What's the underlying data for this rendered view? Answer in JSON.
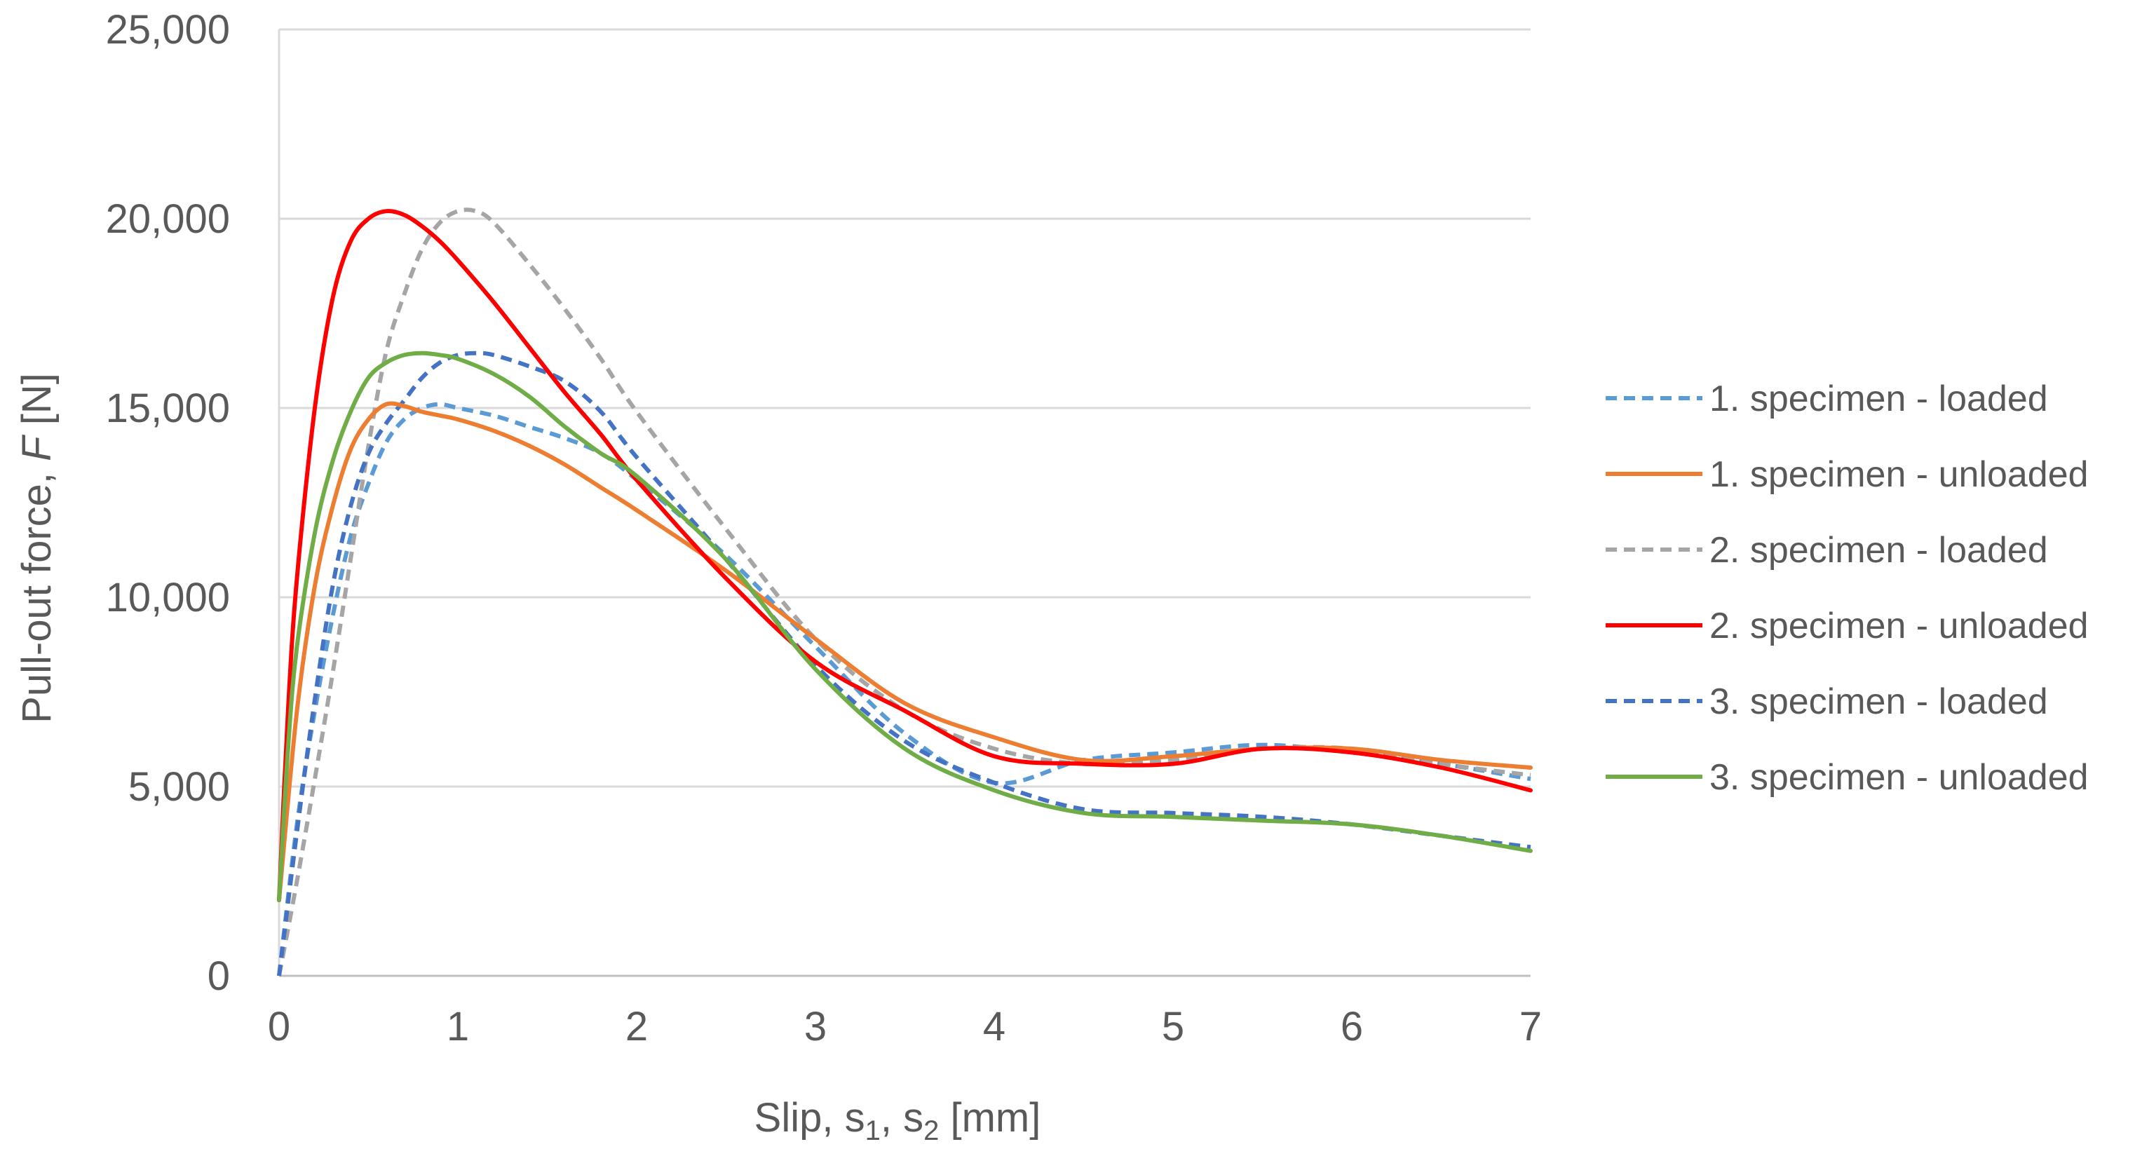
{
  "chart_data": {
    "type": "line",
    "title": "",
    "xlabel": {
      "main": "Slip, s",
      "sub1": "1",
      "sep": ", s",
      "sub2": "2",
      "unit": " [mm]"
    },
    "ylabel": {
      "main": "Pull-out force, ",
      "italic": "F",
      "unit": " [N]"
    },
    "xlim": [
      0,
      7
    ],
    "ylim": [
      0,
      25000
    ],
    "x_ticks": [
      0,
      1,
      2,
      3,
      4,
      5,
      6,
      7
    ],
    "x_tick_labels": [
      "0",
      "1",
      "2",
      "3",
      "4",
      "5",
      "6",
      "7"
    ],
    "y_ticks": [
      0,
      5000,
      10000,
      15000,
      20000,
      25000
    ],
    "y_tick_labels": [
      "0",
      "5,000",
      "10,000",
      "15,000",
      "20,000",
      "25,000"
    ],
    "grid": "horizontal",
    "legend_position": "right",
    "series": [
      {
        "name": "1. specimen - loaded",
        "color": "#5B9BD5",
        "dashed": true,
        "x": [
          0,
          0.1,
          0.2,
          0.3,
          0.4,
          0.5,
          0.6,
          0.7,
          0.8,
          0.9,
          1.0,
          1.2,
          1.4,
          1.6,
          1.8,
          2.0,
          2.5,
          3.0,
          3.5,
          4.0,
          4.5,
          5.0,
          5.5,
          6.0,
          6.5,
          7.0
        ],
        "y": [
          0,
          4000,
          7000,
          9500,
          11600,
          13000,
          14100,
          14700,
          15000,
          15100,
          15000,
          14800,
          14500,
          14200,
          13800,
          13100,
          11100,
          8700,
          6400,
          5100,
          5700,
          5900,
          6100,
          5900,
          5600,
          5200
        ]
      },
      {
        "name": "1. specimen - unloaded",
        "color": "#ED7D31",
        "dashed": false,
        "x": [
          0,
          0.1,
          0.2,
          0.3,
          0.4,
          0.5,
          0.6,
          0.7,
          0.8,
          0.9,
          1.0,
          1.2,
          1.4,
          1.6,
          1.8,
          2.0,
          2.5,
          3.0,
          3.5,
          4.0,
          4.5,
          5.0,
          5.5,
          6.0,
          6.5,
          7.0
        ],
        "y": [
          2000,
          7000,
          10300,
          12400,
          13900,
          14700,
          15100,
          15050,
          14900,
          14800,
          14700,
          14400,
          14000,
          13500,
          12900,
          12300,
          10700,
          8900,
          7200,
          6300,
          5700,
          5800,
          6000,
          6000,
          5700,
          5500
        ]
      },
      {
        "name": "2. specimen - loaded",
        "color": "#A5A5A5",
        "dashed": true,
        "x": [
          0,
          0.1,
          0.2,
          0.3,
          0.4,
          0.5,
          0.6,
          0.7,
          0.8,
          0.9,
          1.0,
          1.1,
          1.2,
          1.4,
          1.6,
          1.8,
          2.0,
          2.5,
          3.0,
          3.5,
          4.0,
          4.5,
          5.0,
          5.5,
          6.0,
          6.5,
          7.0
        ],
        "y": [
          0,
          2500,
          5200,
          8000,
          11000,
          14000,
          16500,
          18000,
          19200,
          19900,
          20200,
          20200,
          19900,
          18800,
          17600,
          16300,
          14900,
          11800,
          8900,
          7000,
          6000,
          5600,
          5700,
          6000,
          6000,
          5600,
          5300
        ]
      },
      {
        "name": "2. specimen - unloaded",
        "color": "#FF0000",
        "dashed": false,
        "x": [
          0,
          0.05,
          0.1,
          0.2,
          0.3,
          0.4,
          0.5,
          0.6,
          0.7,
          0.8,
          0.9,
          1.0,
          1.2,
          1.4,
          1.6,
          1.8,
          2.0,
          2.5,
          3.0,
          3.5,
          4.0,
          4.5,
          5.0,
          5.5,
          6.0,
          6.5,
          7.0
        ],
        "y": [
          2000,
          7000,
          10500,
          15000,
          17900,
          19400,
          20000,
          20200,
          20100,
          19800,
          19400,
          18900,
          17800,
          16600,
          15400,
          14300,
          13100,
          10500,
          8300,
          7000,
          5800,
          5600,
          5600,
          6000,
          5900,
          5500,
          4900
        ]
      },
      {
        "name": "3. specimen - loaded",
        "color": "#4472C4",
        "dashed": true,
        "x": [
          0,
          0.1,
          0.2,
          0.3,
          0.4,
          0.5,
          0.6,
          0.7,
          0.8,
          0.9,
          1.0,
          1.1,
          1.2,
          1.4,
          1.6,
          1.8,
          2.0,
          2.5,
          3.0,
          3.5,
          4.0,
          4.5,
          5.0,
          5.5,
          6.0,
          6.5,
          7.0
        ],
        "y": [
          0,
          3800,
          7300,
          10300,
          12400,
          13800,
          14600,
          15200,
          15800,
          16200,
          16400,
          16450,
          16400,
          16100,
          15700,
          14900,
          13700,
          11000,
          8200,
          6200,
          5100,
          4400,
          4300,
          4200,
          4000,
          3700,
          3400
        ]
      },
      {
        "name": "3. specimen - unloaded",
        "color": "#70AD47",
        "dashed": false,
        "x": [
          0,
          0.05,
          0.1,
          0.2,
          0.3,
          0.4,
          0.5,
          0.6,
          0.7,
          0.8,
          0.9,
          1.0,
          1.2,
          1.4,
          1.6,
          1.8,
          2.0,
          2.5,
          3.0,
          3.5,
          4.0,
          4.5,
          5.0,
          5.5,
          6.0,
          6.5,
          7.0
        ],
        "y": [
          2000,
          6000,
          8700,
          11700,
          13600,
          14900,
          15800,
          16200,
          16400,
          16450,
          16400,
          16300,
          15900,
          15300,
          14500,
          13800,
          13200,
          11000,
          8100,
          6000,
          4900,
          4300,
          4200,
          4100,
          4000,
          3700,
          3300
        ]
      }
    ]
  }
}
